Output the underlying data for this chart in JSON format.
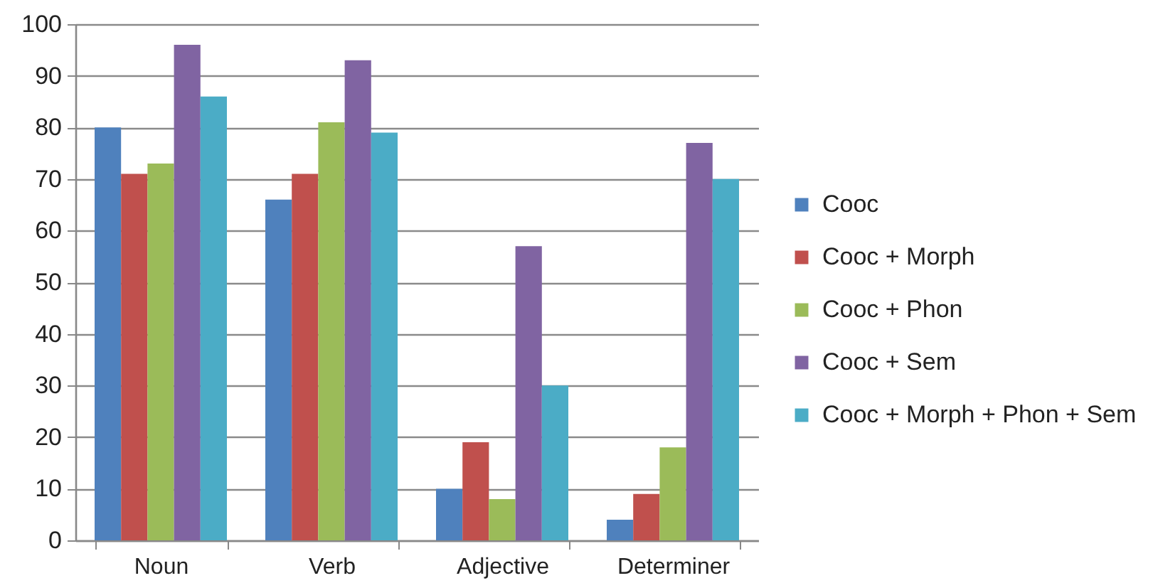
{
  "chart_data": {
    "type": "bar",
    "categories": [
      "Noun",
      "Verb",
      "Adjective",
      "Determiner"
    ],
    "series": [
      {
        "name": "Cooc",
        "color": "#4f81bd",
        "values": [
          80,
          66,
          10,
          4
        ]
      },
      {
        "name": "Cooc + Morph",
        "color": "#c0504d",
        "values": [
          71,
          71,
          19,
          9
        ]
      },
      {
        "name": "Cooc + Phon",
        "color": "#9bbb59",
        "values": [
          73,
          81,
          8,
          18
        ]
      },
      {
        "name": "Cooc + Sem",
        "color": "#8064a2",
        "values": [
          96,
          93,
          57,
          77
        ]
      },
      {
        "name": "Cooc + Morph + Phon + Sem",
        "color": "#4bacc6",
        "values": [
          86,
          79,
          30,
          70
        ]
      }
    ],
    "ylim": [
      0,
      100
    ],
    "yticks": [
      0,
      10,
      20,
      30,
      40,
      50,
      60,
      70,
      80,
      90,
      100
    ],
    "grid": "y",
    "legend": "right"
  }
}
